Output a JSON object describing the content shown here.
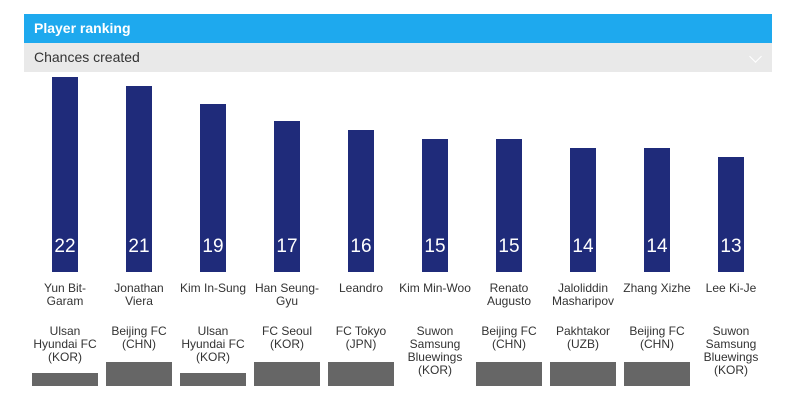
{
  "chart_data": {
    "type": "bar",
    "title": "Player ranking",
    "subtitle": "Chances created",
    "categories": [
      "Yun Bit-Garam",
      "Jonathan Viera",
      "Kim In-Sung",
      "Han Seung-Gyu",
      "Leandro",
      "Kim Min-Woo",
      "Renato Augusto",
      "Jaloliddin Masharipov",
      "Zhang Xizhe",
      "Lee Ki-Je"
    ],
    "clubs": [
      "Ulsan Hyundai FC (KOR)",
      "Beijing FC (CHN)",
      "Ulsan Hyundai FC (KOR)",
      "FC Seoul (KOR)",
      "FC Tokyo (JPN)",
      "Suwon Samsung Bluewings (KOR)",
      "Beijing FC (CHN)",
      "Pakhtakor (UZB)",
      "Beijing FC (CHN)",
      "Suwon Samsung Bluewings (KOR)"
    ],
    "values": [
      22,
      21,
      19,
      17,
      16,
      15,
      15,
      14,
      14,
      13
    ],
    "color": "#1f2b7a"
  }
}
